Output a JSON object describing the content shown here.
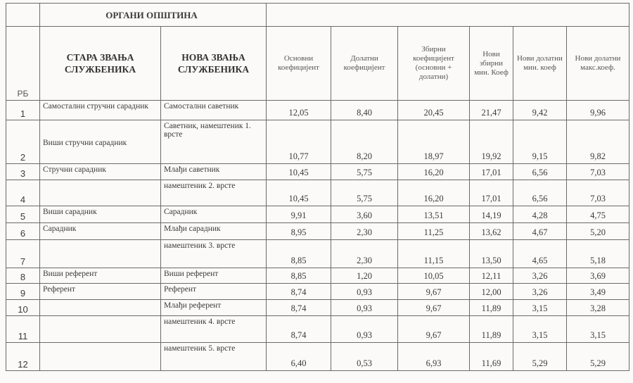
{
  "table": {
    "group_header": "ОРГАНИ ОПШТИНА",
    "headers": [
      "РБ",
      "СТАРА ЗВАЊА СЛУЖБЕНИКА",
      "НОВА ЗВАЊА СЛУЖБЕНИКА",
      "Основни коефицијент",
      "Долатни коефицијент",
      "Збирни коефицијент (основни + долатни)",
      "Нови збирни мин. Коеф",
      "Нови долатни мин. коеф",
      "Нови долатни макс.коеф."
    ],
    "rows": [
      [
        "1",
        "Самостални стручни сарадник",
        "Самостални саветник",
        "12,05",
        "8,40",
        "20,45",
        "21,47",
        "9,42",
        "9,96"
      ],
      [
        "2",
        "Виши стручни сарадник",
        "Саветник, намештеник 1. врсте",
        "10,77",
        "8,20",
        "18,97",
        "19,92",
        "9,15",
        "9,82"
      ],
      [
        "3",
        "Стручни сарадник",
        "Млађи саветник",
        "10,45",
        "5,75",
        "16,20",
        "17,01",
        "6,56",
        "7,03"
      ],
      [
        "4",
        "",
        "намештеник 2. врсте",
        "10,45",
        "5,75",
        "16,20",
        "17,01",
        "6,56",
        "7,03"
      ],
      [
        "5",
        "Виши сарадник",
        "Сарадник",
        "9,91",
        "3,60",
        "13,51",
        "14,19",
        "4,28",
        "4,75"
      ],
      [
        "6",
        "Сарадник",
        "Млађи сарадник",
        "8,95",
        "2,30",
        "11,25",
        "13,62",
        "4,67",
        "5,20"
      ],
      [
        "7",
        "",
        "намештеник 3. врсте",
        "8,85",
        "2,30",
        "11,15",
        "13,50",
        "4,65",
        "5,18"
      ],
      [
        "8",
        "Виши референт",
        "Виши референт",
        "8,85",
        "1,20",
        "10,05",
        "12,11",
        "3,26",
        "3,69"
      ],
      [
        "9",
        "Референт",
        "Референт",
        "8,74",
        "0,93",
        "9,67",
        "12,00",
        "3,26",
        "3,49"
      ],
      [
        "10",
        "",
        "Млађи референт",
        "8,74",
        "0,93",
        "9,67",
        "11,89",
        "3,15",
        "3,28"
      ],
      [
        "11",
        "",
        "намештеник 4. врсте",
        "8,74",
        "0,93",
        "9,67",
        "11,89",
        "3,15",
        "3,15"
      ],
      [
        "12",
        "",
        "намештеник 5. врсте",
        "6,40",
        "0,53",
        "6,93",
        "11,69",
        "5,29",
        "5,29"
      ]
    ]
  }
}
